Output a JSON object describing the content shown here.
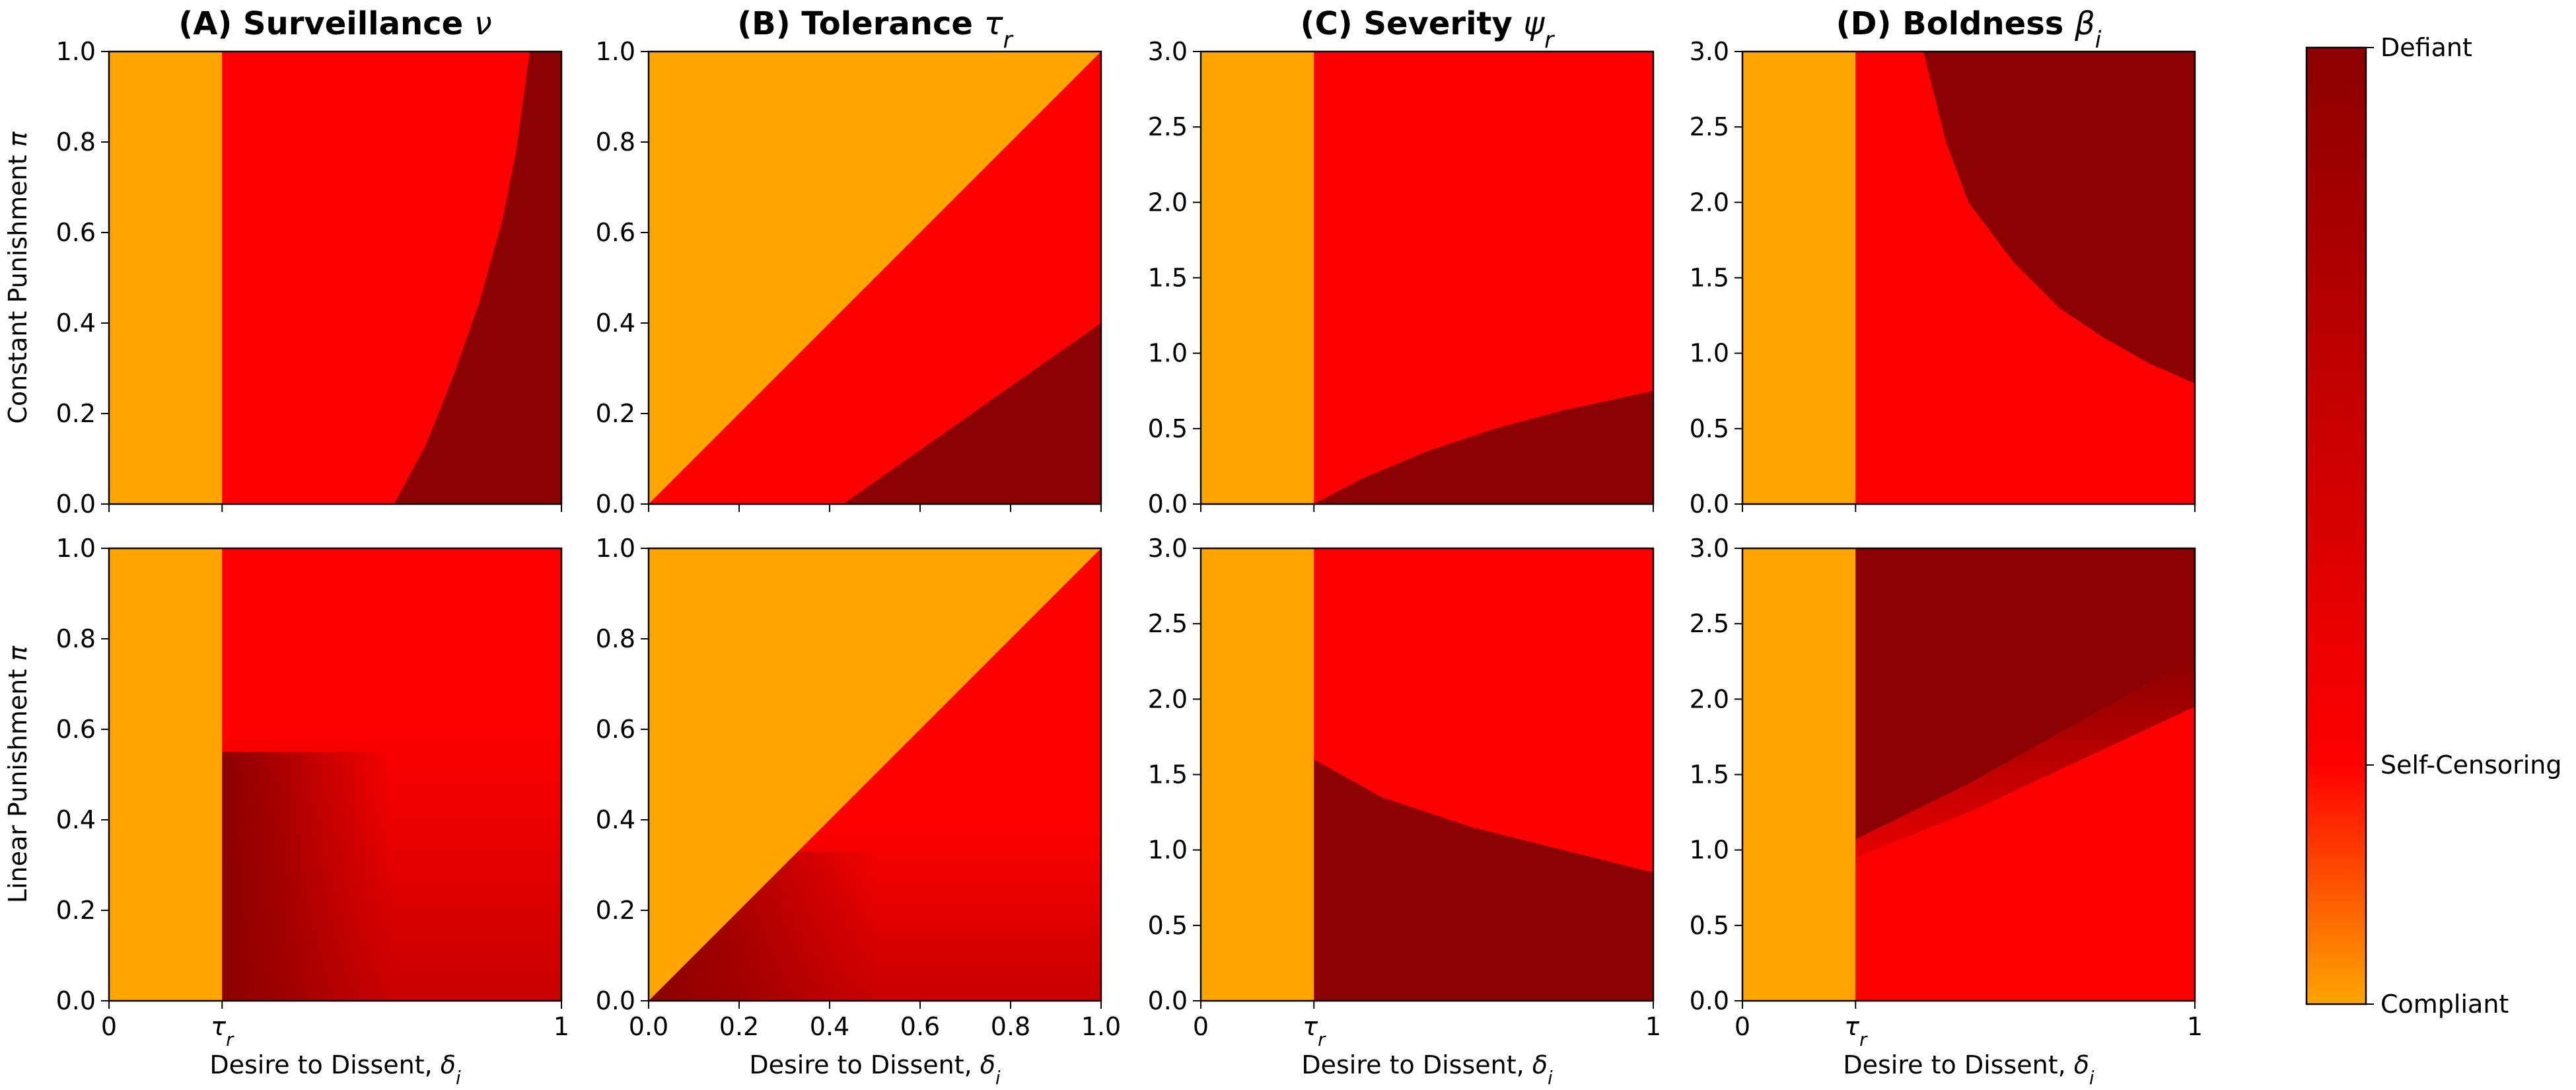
{
  "chart_data": {
    "type": "heatmap",
    "layout": "2 rows x 4 columns of region-map panels with a shared vertical colorbar",
    "column_titles": [
      {
        "prefix": "(A) Surveillance ",
        "symbol": "ν",
        "sub": ""
      },
      {
        "prefix": "(B) Tolerance ",
        "symbol": "τ",
        "sub": "r"
      },
      {
        "prefix": "(C) Severity ",
        "symbol": "ψ",
        "sub": "r"
      },
      {
        "prefix": "(D) Boldness ",
        "symbol": "β",
        "sub": "i"
      }
    ],
    "row_labels": [
      {
        "text": "Constant Punishment ",
        "symbol": "π"
      },
      {
        "text": "Linear Punishment ",
        "symbol": "π"
      }
    ],
    "xlabel": {
      "text": "Desire to Dissent, ",
      "symbol": "δ",
      "sub": "i"
    },
    "xticks_by_column": [
      [
        {
          "v": 0,
          "t": "0"
        },
        {
          "v": 0.25,
          "t": "τ",
          "sub": "r"
        },
        {
          "v": 1,
          "t": "1"
        }
      ],
      [
        {
          "v": 0,
          "t": "0.0"
        },
        {
          "v": 0.2,
          "t": "0.2"
        },
        {
          "v": 0.4,
          "t": "0.4"
        },
        {
          "v": 0.6,
          "t": "0.6"
        },
        {
          "v": 0.8,
          "t": "0.8"
        },
        {
          "v": 1,
          "t": "1.0"
        }
      ],
      [
        {
          "v": 0,
          "t": "0"
        },
        {
          "v": 0.25,
          "t": "τ",
          "sub": "r"
        },
        {
          "v": 1,
          "t": "1"
        }
      ],
      [
        {
          "v": 0,
          "t": "0"
        },
        {
          "v": 0.25,
          "t": "τ",
          "sub": "r"
        },
        {
          "v": 1,
          "t": "1"
        }
      ]
    ],
    "yranges_by_column": [
      [
        0,
        1
      ],
      [
        0,
        1
      ],
      [
        0,
        3
      ],
      [
        0,
        3
      ]
    ],
    "yticks_by_column": [
      [
        "0.0",
        "0.2",
        "0.4",
        "0.6",
        "0.8",
        "1.0"
      ],
      [
        "0.0",
        "0.2",
        "0.4",
        "0.6",
        "0.8",
        "1.0"
      ],
      [
        "0.0",
        "0.5",
        "1.0",
        "1.5",
        "2.0",
        "2.5",
        "3.0"
      ],
      [
        "0.0",
        "0.5",
        "1.0",
        "1.5",
        "2.0",
        "2.5",
        "3.0"
      ]
    ],
    "colorbar": {
      "labels": [
        {
          "value": 1.0,
          "text": "Defiant"
        },
        {
          "value": 0.25,
          "text": "Self-Censoring"
        },
        {
          "value": 0.0,
          "text": "Compliant"
        }
      ],
      "stops": [
        {
          "value": 0.0,
          "color": "#ffa500"
        },
        {
          "value": 0.25,
          "color": "#ff0000"
        },
        {
          "value": 1.0,
          "color": "#8b0000"
        }
      ]
    },
    "regions": {
      "compliant": "#ffa500",
      "self_censoring": "#ff0000",
      "defiant": "#8b0000",
      "mixed_linear": "#c80000"
    },
    "panels": [
      {
        "row": 0,
        "col": 0,
        "compliant_x_max": 0.25,
        "defiant_boundary": [
          [
            0.63,
            0
          ],
          [
            0.7,
            0.13
          ],
          [
            0.76,
            0.28
          ],
          [
            0.82,
            0.45
          ],
          [
            0.87,
            0.63
          ],
          [
            0.9,
            0.78
          ],
          [
            0.93,
            1
          ]
        ]
      },
      {
        "row": 0,
        "col": 1,
        "compliant_above_line": "y = x",
        "defiant_boundary": [
          [
            0.43,
            0
          ],
          [
            1.0,
            0.4
          ]
        ]
      },
      {
        "row": 0,
        "col": 2,
        "compliant_x_max": 0.25,
        "defiant_boundary": [
          [
            0.25,
            0
          ],
          [
            0.35,
            0.16
          ],
          [
            0.5,
            0.35
          ],
          [
            0.65,
            0.5
          ],
          [
            0.8,
            0.62
          ],
          [
            1.0,
            0.75
          ]
        ]
      },
      {
        "row": 0,
        "col": 3,
        "compliant_x_max": 0.25,
        "defiant_boundary": [
          [
            0.4,
            3.0
          ],
          [
            0.45,
            2.4
          ],
          [
            0.5,
            2.0
          ],
          [
            0.6,
            1.6
          ],
          [
            0.7,
            1.3
          ],
          [
            0.8,
            1.1
          ],
          [
            0.9,
            0.93
          ],
          [
            1.0,
            0.8
          ]
        ]
      },
      {
        "row": 1,
        "col": 0,
        "compliant_x_max": 0.25,
        "gradient_top_y": 0.55,
        "dark_core_x": [
          0.25,
          0.45
        ]
      },
      {
        "row": 1,
        "col": 1,
        "compliant_above_line": "y = x",
        "gradient_top_y": 0.33,
        "dark_wedge_x": [
          0,
          0.33
        ]
      },
      {
        "row": 1,
        "col": 2,
        "compliant_x_max": 0.25,
        "defiant_boundary": [
          [
            0.25,
            1.6
          ],
          [
            0.4,
            1.35
          ],
          [
            0.6,
            1.15
          ],
          [
            0.8,
            1.0
          ],
          [
            1.0,
            0.85
          ]
        ]
      },
      {
        "row": 1,
        "col": 3,
        "compliant_x_max": 0.25,
        "self_censoring_boundary": [
          [
            0.25,
            0.95
          ],
          [
            0.5,
            1.25
          ],
          [
            0.75,
            1.6
          ],
          [
            1.0,
            1.95
          ]
        ]
      }
    ]
  }
}
